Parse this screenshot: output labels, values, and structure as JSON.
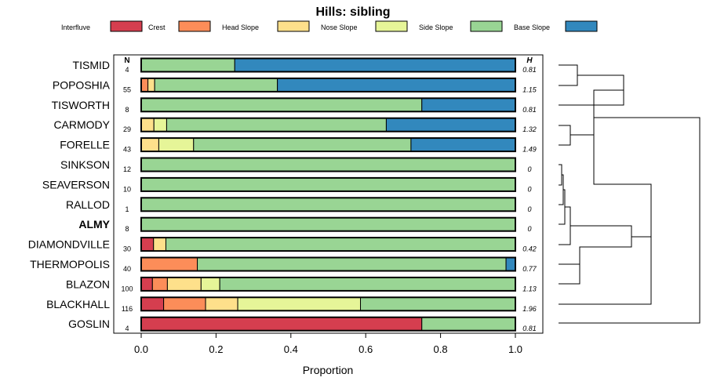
{
  "chart_data": {
    "type": "bar",
    "orientation": "horizontal",
    "stacked": true,
    "title": "Hills: sibling",
    "xlabel": "Proportion",
    "xlim": [
      0,
      1
    ],
    "xticks": [
      "0.0",
      "0.2",
      "0.4",
      "0.6",
      "0.8",
      "1.0"
    ],
    "n_header": "N",
    "h_header": "H",
    "highlight": "ALMY",
    "legend_position": "top",
    "series": [
      {
        "name": "Interfluve",
        "color": "#d53e4f"
      },
      {
        "name": "Crest",
        "color": "#fc8d59"
      },
      {
        "name": "Head Slope",
        "color": "#fee08b"
      },
      {
        "name": "Nose Slope",
        "color": "#e6f598"
      },
      {
        "name": "Side Slope",
        "color": "#99d594"
      },
      {
        "name": "Base Slope",
        "color": "#3288bd"
      }
    ],
    "rows": [
      {
        "name": "TISMID",
        "n": "4",
        "h": "0.81",
        "values": [
          0,
          0,
          0,
          0,
          0.25,
          0.75
        ]
      },
      {
        "name": "POPOSHIA",
        "n": "55",
        "h": "1.15",
        "values": [
          0,
          0.018,
          0.018,
          0,
          0.328,
          0.636
        ]
      },
      {
        "name": "TISWORTH",
        "n": "8",
        "h": "0.81",
        "values": [
          0,
          0,
          0,
          0,
          0.75,
          0.25
        ]
      },
      {
        "name": "CARMODY",
        "n": "29",
        "h": "1.32",
        "values": [
          0,
          0,
          0.034,
          0.034,
          0.587,
          0.345
        ]
      },
      {
        "name": "FORELLE",
        "n": "43",
        "h": "1.49",
        "values": [
          0,
          0,
          0.047,
          0.093,
          0.581,
          0.279
        ]
      },
      {
        "name": "SINKSON",
        "n": "12",
        "h": "0",
        "values": [
          0,
          0,
          0,
          0,
          1,
          0
        ]
      },
      {
        "name": "SEAVERSON",
        "n": "10",
        "h": "0",
        "values": [
          0,
          0,
          0,
          0,
          1,
          0
        ]
      },
      {
        "name": "RALLOD",
        "n": "1",
        "h": "0",
        "values": [
          0,
          0,
          0,
          0,
          1,
          0
        ]
      },
      {
        "name": "ALMY",
        "n": "8",
        "h": "0",
        "values": [
          0,
          0,
          0,
          0,
          1,
          0
        ]
      },
      {
        "name": "DIAMONDVILLE",
        "n": "30",
        "h": "0.42",
        "values": [
          0.033,
          0,
          0.033,
          0,
          0.934,
          0
        ]
      },
      {
        "name": "THERMOPOLIS",
        "n": "40",
        "h": "0.77",
        "values": [
          0,
          0.15,
          0,
          0,
          0.825,
          0.025
        ]
      },
      {
        "name": "BLAZON",
        "n": "100",
        "h": "1.13",
        "values": [
          0.03,
          0.04,
          0.09,
          0.05,
          0.79,
          0
        ]
      },
      {
        "name": "BLACKHALL",
        "n": "116",
        "h": "1.96",
        "values": [
          0.06,
          0.112,
          0.086,
          0.328,
          0.414,
          0
        ]
      },
      {
        "name": "GOSLIN",
        "n": "4",
        "h": "0.81",
        "values": [
          0.75,
          0,
          0,
          0,
          0.25,
          0
        ]
      }
    ]
  }
}
